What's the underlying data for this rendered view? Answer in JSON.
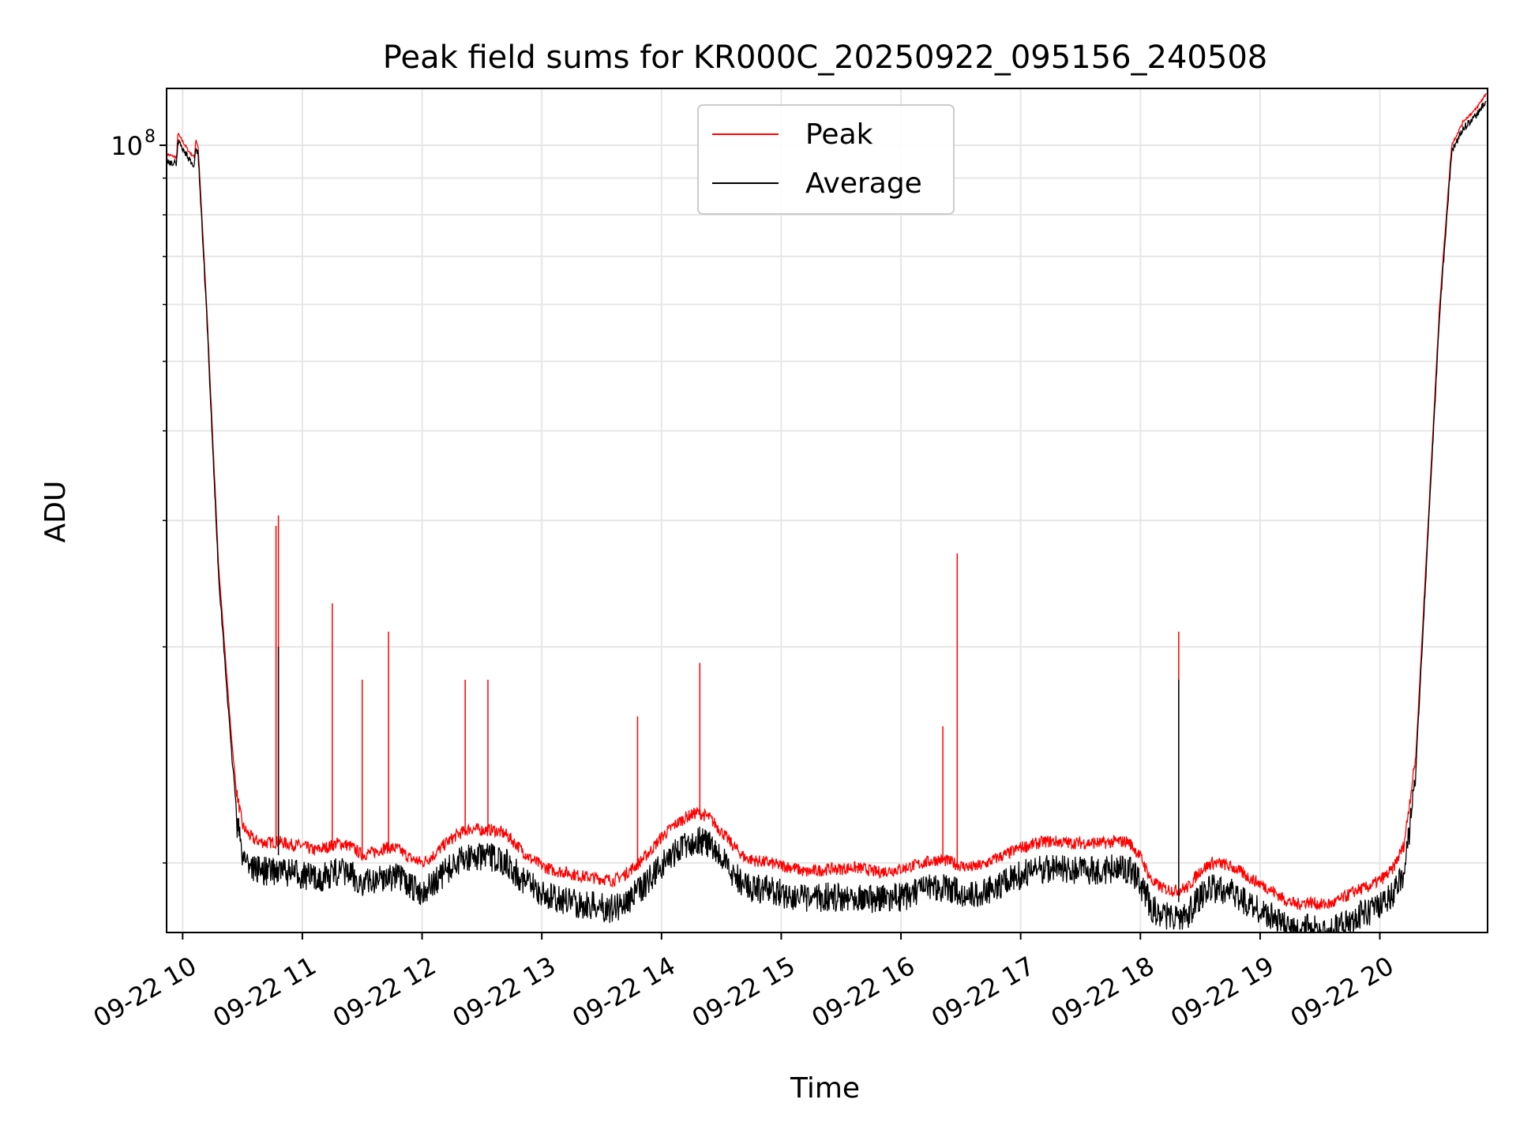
{
  "chart_data": {
    "type": "line",
    "title": "Peak field sums for KR000C_20250922_095156_240508",
    "xlabel": "Time",
    "ylabel": "ADU",
    "yscale": "log",
    "ylim": [
      8000000,
      120000000
    ],
    "xlim": [
      9.866,
      20.9
    ],
    "grid": true,
    "legend_position": "upper center",
    "x_ticks": [
      {
        "value": 10,
        "label": "09-22 10"
      },
      {
        "value": 11,
        "label": "09-22 11"
      },
      {
        "value": 12,
        "label": "09-22 12"
      },
      {
        "value": 13,
        "label": "09-22 13"
      },
      {
        "value": 14,
        "label": "09-22 14"
      },
      {
        "value": 15,
        "label": "09-22 15"
      },
      {
        "value": 16,
        "label": "09-22 16"
      },
      {
        "value": 17,
        "label": "09-22 17"
      },
      {
        "value": 18,
        "label": "09-22 18"
      },
      {
        "value": 19,
        "label": "09-22 19"
      },
      {
        "value": 20,
        "label": "09-22 20"
      }
    ],
    "y_major_ticks": [
      {
        "value": 100000000,
        "base": "10",
        "exp": "8"
      }
    ],
    "y_minor_ticks": [
      10000000,
      20000000,
      30000000,
      40000000,
      50000000,
      60000000,
      70000000,
      80000000,
      90000000
    ],
    "series": [
      {
        "name": "Peak",
        "color": "#ff0000",
        "x": [
          9.87,
          9.95,
          9.96,
          9.97,
          10.05,
          10.1,
          10.11,
          10.13,
          10.2,
          10.3,
          10.4,
          10.45,
          10.5,
          10.55,
          10.6,
          10.7,
          10.8,
          10.9,
          11.0,
          11.1,
          11.2,
          11.3,
          11.4,
          11.5,
          11.6,
          11.7,
          11.8,
          11.9,
          12.0,
          12.1,
          12.2,
          12.3,
          12.4,
          12.5,
          12.6,
          12.7,
          12.8,
          12.9,
          13.0,
          13.1,
          13.2,
          13.3,
          13.4,
          13.5,
          13.6,
          13.7,
          13.8,
          13.9,
          14.0,
          14.1,
          14.2,
          14.3,
          14.4,
          14.5,
          14.6,
          14.7,
          14.8,
          14.9,
          15.0,
          15.1,
          15.2,
          15.3,
          15.4,
          15.5,
          15.6,
          15.7,
          15.8,
          15.9,
          16.0,
          16.1,
          16.2,
          16.3,
          16.4,
          16.5,
          16.6,
          16.7,
          16.8,
          16.9,
          17.0,
          17.1,
          17.2,
          17.3,
          17.4,
          17.5,
          17.6,
          17.7,
          17.8,
          17.9,
          18.0,
          18.1,
          18.2,
          18.3,
          18.4,
          18.5,
          18.6,
          18.7,
          18.8,
          18.9,
          19.0,
          19.1,
          19.2,
          19.3,
          19.4,
          19.5,
          19.6,
          19.7,
          19.8,
          19.9,
          20.0,
          20.1,
          20.2,
          20.3,
          20.4,
          20.5,
          20.6,
          20.7,
          20.8,
          20.89
        ],
        "y": [
          97000000,
          96000000,
          104000000,
          103000000,
          98000000,
          96000000,
          102000000,
          99000000,
          60000000,
          26000000,
          15500000,
          12500000,
          11200000,
          10900000,
          10700000,
          10600000,
          10650000,
          10550000,
          10500000,
          10350000,
          10450000,
          10600000,
          10500000,
          10200000,
          10300000,
          10450000,
          10400000,
          10100000,
          9950000,
          10200000,
          10600000,
          10900000,
          11100000,
          11050000,
          11050000,
          10900000,
          10500000,
          10100000,
          9850000,
          9700000,
          9650000,
          9550000,
          9500000,
          9450000,
          9400000,
          9600000,
          9900000,
          10300000,
          10800000,
          11200000,
          11500000,
          11700000,
          11500000,
          11000000,
          10500000,
          10100000,
          10000000,
          9950000,
          9850000,
          9800000,
          9650000,
          9700000,
          9750000,
          9750000,
          9800000,
          9750000,
          9650000,
          9700000,
          9750000,
          9850000,
          9950000,
          10050000,
          10000000,
          9850000,
          9800000,
          9900000,
          10100000,
          10250000,
          10450000,
          10550000,
          10650000,
          10650000,
          10600000,
          10600000,
          10600000,
          10600000,
          10650000,
          10650000,
          10150000,
          9350000,
          9150000,
          9100000,
          9200000,
          9700000,
          9950000,
          9900000,
          9750000,
          9500000,
          9300000,
          9100000,
          8850000,
          8700000,
          8780000,
          8700000,
          8720000,
          8900000,
          9100000,
          9200000,
          9400000,
          9700000,
          10500000,
          14000000,
          29000000,
          60000000,
          100000000,
          108000000,
          112000000,
          118000000
        ]
      },
      {
        "name": "Average",
        "color": "#000000",
        "x": [
          9.87,
          9.95,
          9.96,
          9.97,
          10.05,
          10.1,
          10.11,
          10.13,
          10.2,
          10.3,
          10.4,
          10.45,
          10.5,
          10.55,
          10.6,
          10.7,
          10.8,
          10.9,
          11.0,
          11.1,
          11.2,
          11.3,
          11.4,
          11.5,
          11.6,
          11.7,
          11.8,
          11.9,
          12.0,
          12.1,
          12.2,
          12.3,
          12.4,
          12.5,
          12.6,
          12.7,
          12.8,
          12.9,
          13.0,
          13.1,
          13.2,
          13.3,
          13.4,
          13.5,
          13.6,
          13.7,
          13.8,
          13.9,
          14.0,
          14.1,
          14.2,
          14.3,
          14.4,
          14.5,
          14.6,
          14.7,
          14.8,
          14.9,
          15.0,
          15.1,
          15.2,
          15.3,
          15.4,
          15.5,
          15.6,
          15.7,
          15.8,
          15.9,
          16.0,
          16.1,
          16.2,
          16.3,
          16.4,
          16.5,
          16.6,
          16.7,
          16.8,
          16.9,
          17.0,
          17.1,
          17.2,
          17.3,
          17.4,
          17.5,
          17.6,
          17.7,
          17.8,
          17.9,
          18.0,
          18.1,
          18.2,
          18.3,
          18.4,
          18.5,
          18.6,
          18.7,
          18.8,
          18.9,
          19.0,
          19.1,
          19.2,
          19.3,
          19.4,
          19.5,
          19.6,
          19.7,
          19.8,
          19.9,
          20.0,
          20.1,
          20.2,
          20.3,
          20.4,
          20.5,
          20.6,
          20.7,
          20.8,
          20.89
        ],
        "y": [
          96000000,
          95500000,
          103000000,
          102000000,
          97000000,
          95000000,
          101000000,
          98000000,
          59000000,
          25500000,
          15000000,
          12000000,
          10800000,
          10500000,
          10300000,
          10200000,
          10250000,
          10150000,
          10100000,
          9950000,
          10050000,
          10200000,
          10100000,
          9800000,
          9900000,
          10050000,
          10000000,
          9700000,
          9550000,
          9800000,
          10200000,
          10500000,
          10700000,
          10650000,
          10650000,
          10500000,
          10100000,
          9750000,
          9500000,
          9350000,
          9300000,
          9200000,
          9150000,
          9100000,
          9050000,
          9250000,
          9550000,
          9950000,
          10400000,
          10800000,
          11100000,
          11300000,
          11100000,
          10600000,
          10100000,
          9750000,
          9650000,
          9600000,
          9500000,
          9450000,
          9300000,
          9350000,
          9400000,
          9400000,
          9450000,
          9400000,
          9300000,
          9350000,
          9400000,
          9500000,
          9600000,
          9700000,
          9650000,
          9500000,
          9450000,
          9550000,
          9750000,
          9900000,
          10100000,
          10200000,
          10300000,
          10300000,
          10250000,
          10250000,
          10250000,
          10250000,
          10300000,
          10300000,
          9800000,
          9050000,
          8850000,
          8800000,
          8900000,
          9400000,
          9650000,
          9600000,
          9450000,
          9200000,
          9000000,
          8800000,
          8550000,
          8420000,
          8500000,
          8420000,
          8440000,
          8620000,
          8820000,
          8920000,
          9120000,
          9420000,
          10200000,
          13600000,
          28500000,
          59000000,
          99000000,
          107000000,
          111000000,
          117000000
        ]
      }
    ],
    "spikes": [
      {
        "name": "Peak",
        "x": 10.8,
        "y": 30500000
      },
      {
        "name": "Peak",
        "x": 10.78,
        "y": 29500000
      },
      {
        "name": "Peak",
        "x": 11.25,
        "y": 23000000
      },
      {
        "name": "Peak",
        "x": 11.72,
        "y": 21000000
      },
      {
        "name": "Peak",
        "x": 11.5,
        "y": 18000000
      },
      {
        "name": "Peak",
        "x": 12.36,
        "y": 18000000
      },
      {
        "name": "Peak",
        "x": 12.55,
        "y": 18000000
      },
      {
        "name": "Peak",
        "x": 13.8,
        "y": 16000000
      },
      {
        "name": "Peak",
        "x": 14.32,
        "y": 19000000
      },
      {
        "name": "Peak",
        "x": 16.35,
        "y": 15500000
      },
      {
        "name": "Peak",
        "x": 16.47,
        "y": 27000000
      },
      {
        "name": "Peak",
        "x": 18.32,
        "y": 21000000
      },
      {
        "name": "Average",
        "x": 10.8,
        "y": 20000000
      },
      {
        "name": "Average",
        "x": 18.32,
        "y": 18000000
      }
    ]
  }
}
